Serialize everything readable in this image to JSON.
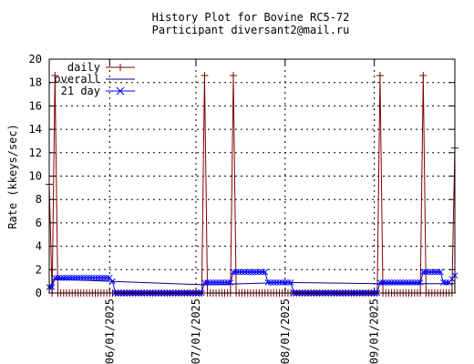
{
  "chart_data": {
    "type": "line",
    "title": "History Plot for Bovine RC5-72",
    "subtitle": "Participant diversant2@mail.ru",
    "xlabel": "",
    "ylabel": "Rate (kkeys/sec)",
    "xlim": [
      "2025-05-11",
      "2025-09-29"
    ],
    "ylim": [
      0,
      20
    ],
    "yticks": [
      0,
      2,
      4,
      6,
      8,
      10,
      12,
      14,
      16,
      18,
      20
    ],
    "xticks": [
      "06/01/2025",
      "07/01/2025",
      "08/01/2025",
      "09/01/2025"
    ],
    "grid": true,
    "legend_position": "top-left",
    "colors": {
      "daily": "#800000",
      "overall": "#000080",
      "21 day": "#0000ff"
    },
    "series": [
      {
        "name": "daily",
        "marker": "plus",
        "points": [
          [
            "2025-05-11",
            9.3
          ],
          [
            "2025-05-12",
            0.0
          ],
          [
            "2025-05-13",
            18.6
          ],
          [
            "2025-05-14",
            0.0
          ],
          [
            "2025-06-01",
            0.0
          ],
          [
            "2025-07-01",
            0.0
          ],
          [
            "2025-07-03",
            0.0
          ],
          [
            "2025-07-04",
            18.6
          ],
          [
            "2025-07-05",
            0.0
          ],
          [
            "2025-07-13",
            0.0
          ],
          [
            "2025-07-14",
            18.6
          ],
          [
            "2025-07-15",
            0.0
          ],
          [
            "2025-08-01",
            0.0
          ],
          [
            "2025-09-01",
            0.0
          ],
          [
            "2025-09-02",
            0.0
          ],
          [
            "2025-09-03",
            18.6
          ],
          [
            "2025-09-04",
            0.0
          ],
          [
            "2025-09-17",
            0.0
          ],
          [
            "2025-09-18",
            18.6
          ],
          [
            "2025-09-19",
            0.0
          ],
          [
            "2025-09-27",
            0.0
          ],
          [
            "2025-09-28",
            0.0
          ],
          [
            "2025-09-29",
            12.4
          ]
        ]
      },
      {
        "name": "overall",
        "marker": "none",
        "points": [
          [
            "2025-05-11",
            0.5
          ],
          [
            "2025-05-13",
            1.2
          ],
          [
            "2025-06-01",
            1.0
          ],
          [
            "2025-07-04",
            0.7
          ],
          [
            "2025-08-01",
            0.9
          ],
          [
            "2025-09-03",
            0.8
          ],
          [
            "2025-09-29",
            0.8
          ]
        ]
      },
      {
        "name": "21 day",
        "marker": "cross",
        "points": [
          [
            "2025-05-11",
            0.5
          ],
          [
            "2025-05-12",
            0.5
          ],
          [
            "2025-05-13",
            1.3
          ],
          [
            "2025-05-20",
            1.3
          ],
          [
            "2025-05-31",
            1.3
          ],
          [
            "2025-06-01",
            1.3
          ],
          [
            "2025-06-02",
            1.0
          ],
          [
            "2025-06-03",
            0.0
          ],
          [
            "2025-07-03",
            0.0
          ],
          [
            "2025-07-04",
            0.9
          ],
          [
            "2025-07-12",
            0.9
          ],
          [
            "2025-07-13",
            0.9
          ],
          [
            "2025-07-14",
            1.8
          ],
          [
            "2025-07-25",
            1.8
          ],
          [
            "2025-07-26",
            0.9
          ],
          [
            "2025-08-03",
            0.9
          ],
          [
            "2025-08-04",
            0.0
          ],
          [
            "2025-09-02",
            0.0
          ],
          [
            "2025-09-03",
            0.9
          ],
          [
            "2025-09-17",
            0.9
          ],
          [
            "2025-09-18",
            1.8
          ],
          [
            "2025-09-24",
            1.8
          ],
          [
            "2025-09-25",
            0.9
          ],
          [
            "2025-09-27",
            0.9
          ],
          [
            "2025-09-29",
            1.5
          ]
        ]
      }
    ]
  }
}
